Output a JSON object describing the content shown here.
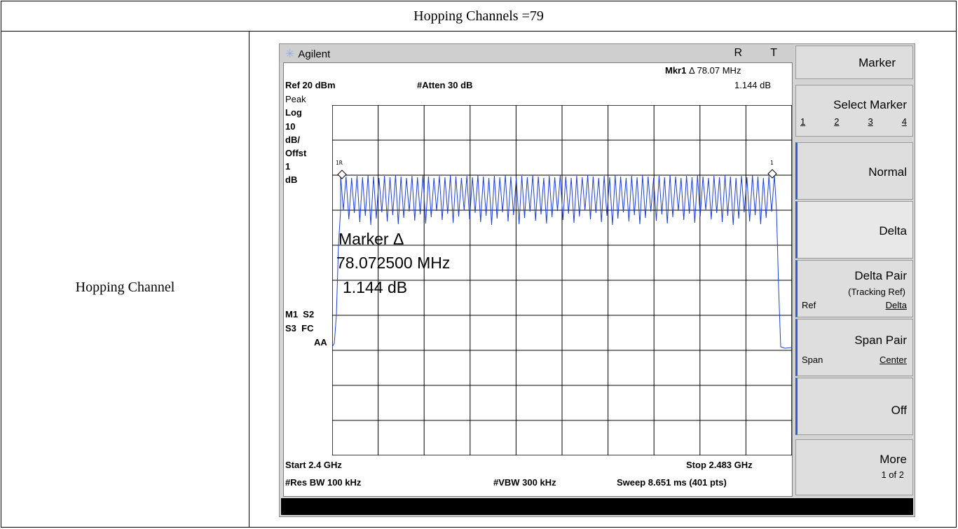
{
  "table": {
    "header": "Hopping Channels =79",
    "row_label": "Hopping Channel"
  },
  "analyzer": {
    "brand": "Agilent",
    "status_letters": "R T",
    "marker_readout": {
      "label": "Mkr1",
      "delta_symbol": "Δ",
      "frequency": "78.07 MHz",
      "amplitude": "1.144 dB"
    },
    "ref_level": "Ref 20 dBm",
    "attenuation": "#Atten 30 dB",
    "left_annotations": {
      "detector": "Peak",
      "scale_type": "Log",
      "scale_value": "10",
      "scale_unit": "dB/",
      "offset_label": "Offst",
      "offset_value": "1",
      "offset_unit": "dB",
      "m1_s2": "M1  S2",
      "s3_fc": "S3  FC",
      "aa": "AA"
    },
    "marker_labels": {
      "ref": "1R",
      "delta": "1"
    },
    "marker_box": {
      "title": "Marker Δ",
      "frequency": "78.072500 MHz",
      "amplitude": "1.144 dB"
    },
    "start_freq": "Start 2.4 GHz",
    "stop_freq": "Stop 2.483 GHz",
    "res_bw": "#Res BW 100 kHz",
    "vbw": "#VBW 300 kHz",
    "sweep": "Sweep 8.651 ms (401 pts)",
    "trace_color": "#1f3fd6"
  },
  "softkeys": {
    "menu_title": "Marker",
    "select_marker": {
      "label": "Select Marker",
      "options": [
        "1",
        "2",
        "3",
        "4"
      ]
    },
    "normal": "Normal",
    "delta": "Delta",
    "delta_pair": {
      "label": "Delta Pair",
      "sub": "(Tracking Ref)",
      "left": "Ref",
      "right": "Delta"
    },
    "span_pair": {
      "label": "Span Pair",
      "left": "Span",
      "right": "Center"
    },
    "off": "Off",
    "more": {
      "label": "More",
      "sub": "1 of 2"
    }
  }
}
